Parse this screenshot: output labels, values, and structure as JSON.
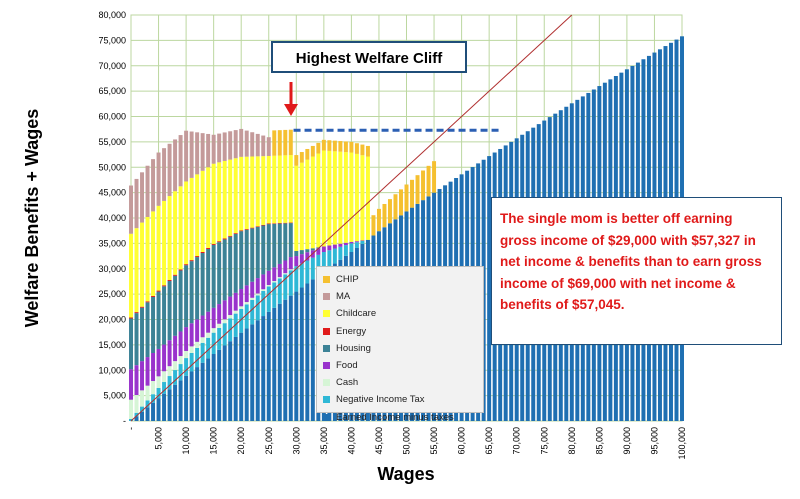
{
  "chart_data": {
    "type": "bar",
    "stacked": true,
    "title": "",
    "xlabel": "Wages",
    "ylabel": "Welfare Benefits + Wages",
    "xlim": [
      0,
      100000
    ],
    "ylim": [
      0,
      80000
    ],
    "grid": true,
    "x_tick_labels": [
      "-",
      "5,000",
      "10,000",
      "15,000",
      "20,000",
      "25,000",
      "30,000",
      "35,000",
      "40,000",
      "45,000",
      "50,000",
      "55,000",
      "60,000",
      "65,000",
      "70,000",
      "75,000",
      "80,000",
      "85,000",
      "90,000",
      "95,000",
      "100,000"
    ],
    "y_tick_labels": [
      "-",
      "5,000",
      "10,000",
      "15,000",
      "20,000",
      "25,000",
      "30,000",
      "35,000",
      "40,000",
      "45,000",
      "50,000",
      "55,000",
      "60,000",
      "65,000",
      "70,000",
      "75,000",
      "80,000"
    ],
    "legend_position": "center-bottom",
    "series": [
      {
        "name": "Earned Income minus taxes",
        "color": "#1f6fb2",
        "x": [
          0,
          5000,
          10000,
          15000,
          20000,
          25000,
          29000,
          30000,
          35000,
          40000,
          43000,
          45000,
          50000,
          55000,
          60000,
          65000,
          70000,
          75000,
          80000,
          85000,
          90000,
          95000,
          100000
        ],
        "values": [
          0,
          4500,
          8900,
          13200,
          17400,
          21500,
          24700,
          25500,
          29500,
          33300,
          35700,
          37400,
          41300,
          45000,
          48600,
          52200,
          55700,
          59200,
          62600,
          66000,
          69300,
          72600,
          75800
        ]
      },
      {
        "name": "Negative Income Tax",
        "color": "#2fb8d6",
        "x": [
          0,
          5000,
          10000,
          15000,
          20000,
          25000,
          29000,
          30000,
          35000,
          40000,
          43000
        ],
        "values": [
          400,
          2000,
          3500,
          4200,
          4700,
          5000,
          5000,
          5000,
          3800,
          1700,
          0
        ]
      },
      {
        "name": "Cash",
        "color": "#d6f5d6",
        "x": [
          0,
          5000,
          10000,
          15000,
          20000,
          25000,
          29000,
          30000,
          35000,
          40000,
          43000
        ],
        "values": [
          3800,
          2300,
          1400,
          900,
          500,
          300,
          200,
          0,
          0,
          0,
          0
        ]
      },
      {
        "name": "Food",
        "color": "#9933cc",
        "x": [
          0,
          5000,
          10000,
          15000,
          20000,
          25000,
          29000,
          30000,
          35000,
          40000,
          43000
        ],
        "values": [
          6000,
          5400,
          4700,
          4000,
          3400,
          2800,
          2400,
          2000,
          1100,
          300,
          0
        ]
      },
      {
        "name": "Housing",
        "color": "#3c8296",
        "x": [
          0,
          5000,
          10000,
          15000,
          20000,
          25000,
          29000,
          30000,
          35000,
          40000,
          43000
        ],
        "values": [
          10000,
          11300,
          12200,
          12400,
          11400,
          9200,
          6700,
          1000,
          0,
          0,
          0
        ]
      },
      {
        "name": "Energy",
        "color": "#e01a1a",
        "x": [
          0,
          5000,
          10000,
          15000,
          20000,
          25000,
          29000,
          30000
        ],
        "values": [
          200,
          200,
          200,
          200,
          150,
          120,
          100,
          0
        ]
      },
      {
        "name": "Childcare",
        "color": "#ffff33",
        "x": [
          0,
          5000,
          10000,
          15000,
          20000,
          25000,
          29000,
          30000,
          35000,
          40000,
          43000
        ],
        "values": [
          16500,
          16700,
          16300,
          15800,
          14500,
          13300,
          13300,
          16800,
          18900,
          17600,
          16400
        ]
      },
      {
        "name": "MA",
        "color": "#c49a9a",
        "x": [
          0,
          5000,
          10000,
          15000,
          20000,
          25000,
          26000,
          29000
        ],
        "values": [
          9500,
          10500,
          10000,
          5700,
          5500,
          3700,
          0,
          0
        ]
      },
      {
        "name": "CHIP",
        "color": "#f5c030",
        "x": [
          0,
          25000,
          26000,
          29000,
          30000,
          35000,
          40000,
          43000,
          44000,
          45000,
          50000,
          55000,
          56000
        ],
        "values": [
          0,
          0,
          5000,
          5000,
          2100,
          2100,
          2100,
          2100,
          4000,
          4400,
          5300,
          6200,
          0
        ]
      }
    ],
    "reference_line": {
      "from": [
        0,
        0
      ],
      "to": [
        80000,
        80000
      ],
      "color": "#b03030"
    },
    "dashed_marker": {
      "y": 57300,
      "x_from": 29500,
      "x_to": 67000,
      "color": "#2b5fb3"
    },
    "annotations": {
      "callout": "Highest Welfare Cliff",
      "note": "The single mom is better off earning gross income of $29,000 with $57,327 in net income & benefits than to earn gross income of $69,000 with net income & benefits of $57,045."
    }
  }
}
